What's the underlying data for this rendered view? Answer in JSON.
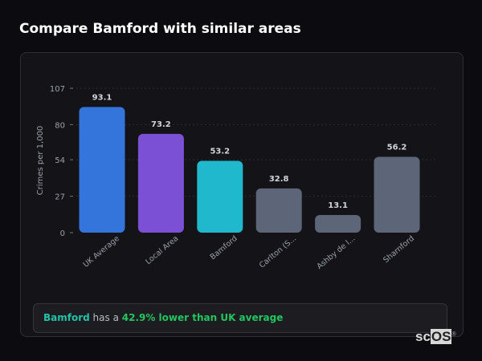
{
  "title": "Compare Bamford with similar areas",
  "chart_data": {
    "type": "bar",
    "title": "",
    "xlabel": "",
    "ylabel": "Crimes per 1,000",
    "ylim": [
      0,
      107
    ],
    "yticks": [
      0,
      27,
      54,
      80,
      107
    ],
    "grid": true,
    "categories": [
      "UK Average",
      "Local Area",
      "Bamford",
      "Carlton (S...",
      "Ashby de l...",
      "Sharnford"
    ],
    "values": [
      93.1,
      73.2,
      53.2,
      32.8,
      13.1,
      56.2
    ],
    "value_labels": [
      "93.1",
      "73.2",
      "53.2",
      "32.8",
      "13.1",
      "56.2"
    ],
    "colors": [
      "#3375db",
      "#7b50d4",
      "#1fb8cd",
      "#5c6678",
      "#5c6678",
      "#5c6678"
    ]
  },
  "summary": {
    "area": "Bamford",
    "middle": " has a ",
    "comparison": "42.9% lower than UK average"
  },
  "logo": {
    "text_a": "sc",
    "text_b": "OS",
    "mark": "®"
  }
}
